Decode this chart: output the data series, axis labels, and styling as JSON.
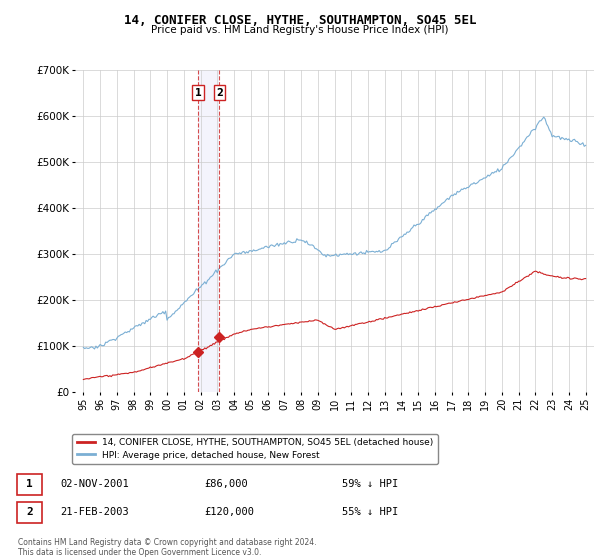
{
  "title": "14, CONIFER CLOSE, HYTHE, SOUTHAMPTON, SO45 5EL",
  "subtitle": "Price paid vs. HM Land Registry's House Price Index (HPI)",
  "hpi_color": "#7bafd4",
  "price_color": "#cc2222",
  "marker_color": "#cc2222",
  "vline_color": "#cc2222",
  "background_color": "#ffffff",
  "grid_color": "#cccccc",
  "ylim": [
    0,
    700000
  ],
  "yticks": [
    0,
    100000,
    200000,
    300000,
    400000,
    500000,
    600000,
    700000
  ],
  "ytick_labels": [
    "£0",
    "£100K",
    "£200K",
    "£300K",
    "£400K",
    "£500K",
    "£600K",
    "£700K"
  ],
  "legend_label_price": "14, CONIFER CLOSE, HYTHE, SOUTHAMPTON, SO45 5EL (detached house)",
  "legend_label_hpi": "HPI: Average price, detached house, New Forest",
  "transaction1_date": "02-NOV-2001",
  "transaction1_price": "£86,000",
  "transaction1_hpi": "59% ↓ HPI",
  "transaction1_x": 2001.84,
  "transaction1_y": 86000,
  "transaction2_date": "21-FEB-2003",
  "transaction2_price": "£120,000",
  "transaction2_hpi": "55% ↓ HPI",
  "transaction2_x": 2003.13,
  "transaction2_y": 120000,
  "footer": "Contains HM Land Registry data © Crown copyright and database right 2024.\nThis data is licensed under the Open Government Licence v3.0.",
  "xlim": [
    1994.5,
    2025.5
  ],
  "xtick_years": [
    1995,
    1996,
    1997,
    1998,
    1999,
    2000,
    2001,
    2002,
    2003,
    2004,
    2005,
    2006,
    2007,
    2008,
    2009,
    2010,
    2011,
    2012,
    2013,
    2014,
    2015,
    2016,
    2017,
    2018,
    2019,
    2020,
    2021,
    2022,
    2023,
    2024,
    2025
  ]
}
